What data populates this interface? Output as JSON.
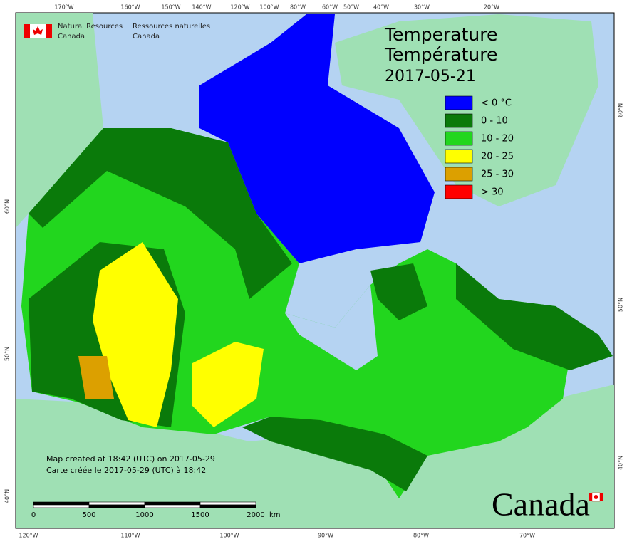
{
  "title": "Temperature",
  "title_fr": "Température",
  "date": "2017-05-21",
  "org": {
    "en": [
      "Natural Resources",
      "Canada"
    ],
    "fr": [
      "Ressources naturelles",
      "Canada"
    ]
  },
  "legend": [
    {
      "label": "< 0 °C",
      "color": "#0000ff"
    },
    {
      "label": "0 - 10",
      "color": "#0a7a0a"
    },
    {
      "label": "10 - 20",
      "color": "#22d61e"
    },
    {
      "label": "20 - 25",
      "color": "#ffff00"
    },
    {
      "label": "25 - 30",
      "color": "#dca000"
    },
    {
      "label": "> 30",
      "color": "#ff0000"
    }
  ],
  "top_labels": [
    "170°W",
    "160°W",
    "150°W",
    "140°W",
    "120°W",
    "100°W",
    "80°W",
    "60°W",
    "50°W",
    "40°W",
    "30°W",
    "20°W"
  ],
  "bottom_labels": [
    "120°W",
    "110°W",
    "100°W",
    "90°W",
    "80°W",
    "70°W"
  ],
  "left_labels": [
    "60°N",
    "50°N",
    "40°N"
  ],
  "right_labels": [
    "60°N",
    "50°N",
    "40°N"
  ],
  "credit": [
    "Map created at 18:42 (UTC) on 2017-05-29",
    "Carte créée le 2017-05-29 (UTC) à 18:42"
  ],
  "scale": {
    "ticks": [
      "0",
      "500",
      "1000",
      "1500",
      "2000"
    ],
    "unit": "km"
  },
  "wordmark": "Canada"
}
